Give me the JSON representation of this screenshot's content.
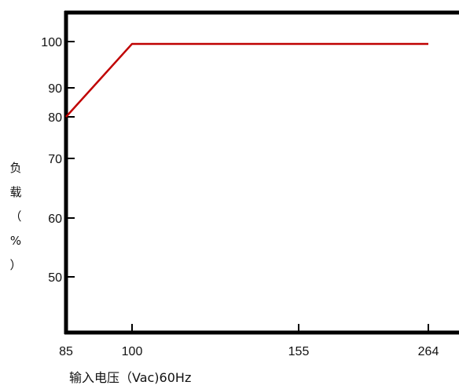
{
  "chart_data": {
    "type": "line",
    "title": "",
    "xlabel": "输入电压（Vac)60Hz",
    "ylabel": "负载（%）",
    "x_ticks": [
      85,
      100,
      155,
      264
    ],
    "y_ticks": [
      50,
      60,
      70,
      80,
      90,
      100
    ],
    "xlim": [
      85,
      272
    ],
    "ylim": [
      40,
      105
    ],
    "grid": false,
    "series": [
      {
        "x": [
          85,
          100,
          264
        ],
        "y": [
          80,
          99.5,
          99.5
        ],
        "color": "#c00000"
      }
    ]
  }
}
